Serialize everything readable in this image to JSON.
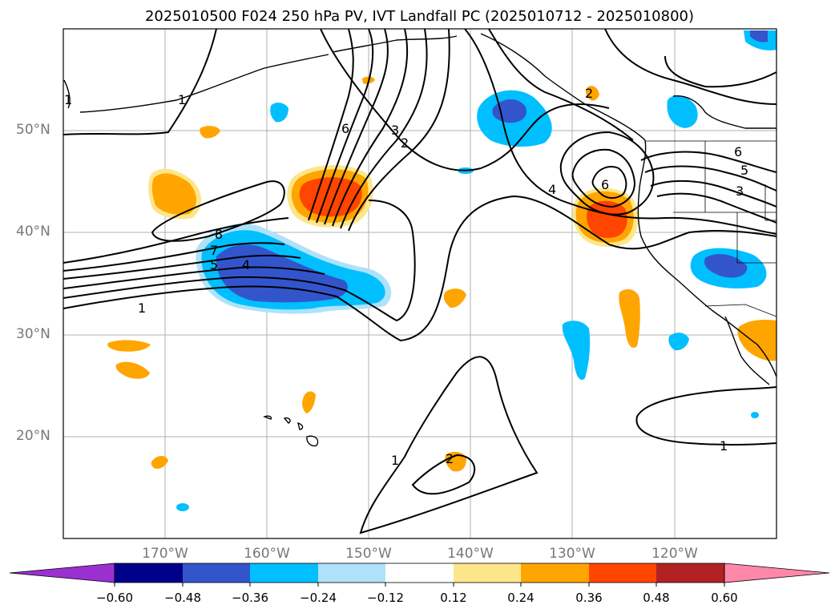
{
  "title": "2025010500 F024 250 hPa PV, IVT Landfall PC (2025010712 - 2025010800)",
  "map": {
    "lon_range": [
      -180,
      -110
    ],
    "lat_range": [
      10,
      60
    ],
    "lat_ticks": [
      {
        "value": 50,
        "label": "50°N"
      },
      {
        "value": 40,
        "label": "40°N"
      },
      {
        "value": 30,
        "label": "30°N"
      },
      {
        "value": 20,
        "label": "20°N"
      }
    ],
    "lon_ticks": [
      {
        "value": -170,
        "label": "170°W"
      },
      {
        "value": -160,
        "label": "160°W"
      },
      {
        "value": -150,
        "label": "150°W"
      },
      {
        "value": -140,
        "label": "140°W"
      },
      {
        "value": -130,
        "label": "130°W"
      },
      {
        "value": -120,
        "label": "120°W"
      }
    ],
    "gridlines": true,
    "contour_labels": [
      "1",
      "2",
      "3",
      "4",
      "5",
      "6",
      "7",
      "8",
      "1",
      "2",
      "3",
      "4",
      "5",
      "6",
      "1",
      "2",
      "1"
    ]
  },
  "colorbar": {
    "levels": [
      "−0.60",
      "−0.48",
      "−0.36",
      "−0.24",
      "−0.12",
      "0.12",
      "0.24",
      "0.36",
      "0.48",
      "0.60"
    ],
    "colors": [
      "#9b30d0",
      "#00008b",
      "#3355cc",
      "#00bfff",
      "#aee2fa",
      "#ffffff",
      "#fde68a",
      "#ffa500",
      "#ff4500",
      "#b22222",
      "#ff88aa"
    ],
    "extend": "both"
  }
}
